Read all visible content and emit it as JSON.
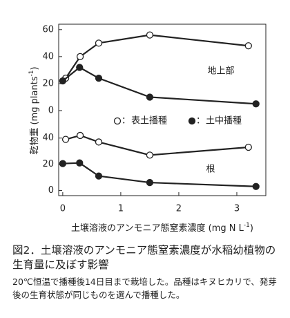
{
  "chart_data": {
    "type": "line",
    "x_label": {
      "text": "土壌溶液のアンモニア態窒素濃度 (mg N L",
      "sup": "-1",
      "close": ")"
    },
    "y_label": {
      "text": "乾物重 (mg plants",
      "sup": "-1",
      "close": ")"
    },
    "xlim": [
      -0.07,
      3.5
    ],
    "xticks": [
      0,
      1,
      2,
      3
    ],
    "legend_separator": "：",
    "panels": [
      {
        "label": "地上部",
        "ylim": [
          0,
          64
        ],
        "yticks": [
          0,
          20,
          40,
          60
        ],
        "series": [
          {
            "name": "表土播種",
            "color": "#222222",
            "marker_fill": "#ffffff",
            "x": [
              0.05,
              0.3,
              0.62,
              1.5,
              3.2
            ],
            "values": [
              24,
              40,
              50,
              56,
              48
            ]
          },
          {
            "name": "土中播種",
            "color": "#222222",
            "marker_fill": "#222222",
            "x": [
              0,
              0.29,
              0.62,
              1.5,
              3.33
            ],
            "values": [
              22,
              32,
              24,
              10,
              5
            ]
          }
        ]
      },
      {
        "label": "根",
        "ylim": [
          -4,
          61
        ],
        "yticks": [
          0,
          20,
          40
        ],
        "series": [
          {
            "name": "表土播種",
            "color": "#222222",
            "marker_fill": "#ffffff",
            "x": [
              0.05,
              0.3,
              0.62,
              1.5,
              3.2
            ],
            "values": [
              39,
              42,
              37,
              27,
              33
            ]
          },
          {
            "name": "土中播種",
            "color": "#222222",
            "marker_fill": "#222222",
            "x": [
              0,
              0.29,
              0.62,
              1.5,
              3.33
            ],
            "values": [
              20.5,
              21,
              11,
              6,
              3
            ]
          }
        ]
      }
    ]
  },
  "caption": {
    "title": "図2．土壌溶液のアンモニア態窒素濃度が水稲幼植物の生育量に及ぼす影響",
    "note": "20℃恒温で播種後14日目まで栽培した。品種はキヌヒカリで、発芽後の生育状態が同じものを選んで播種した。"
  }
}
